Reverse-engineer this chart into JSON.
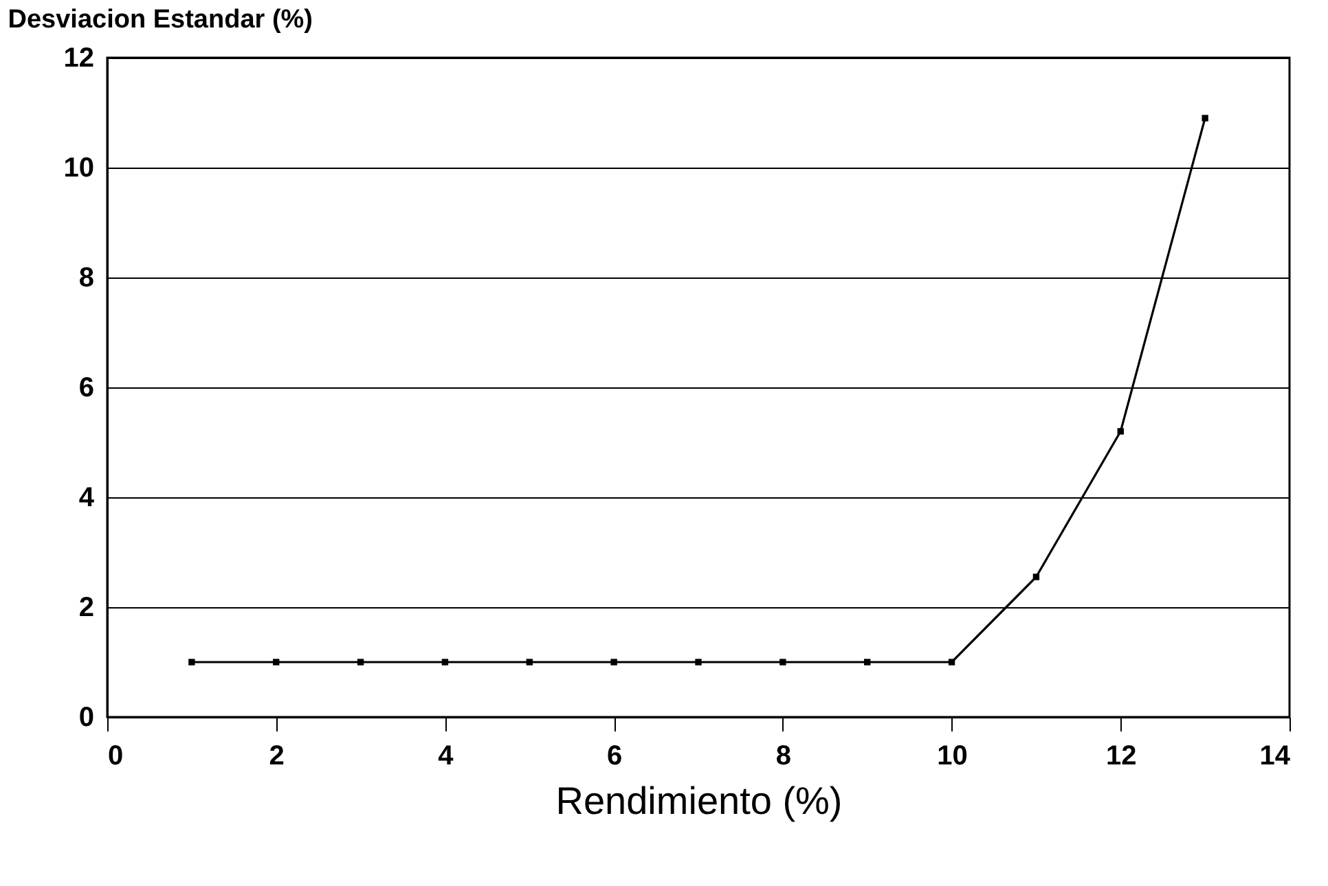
{
  "chart_data": {
    "type": "line",
    "xlabel": "Rendimiento (%)",
    "ylabel": "Desviacion Estandar (%)",
    "x": [
      1,
      2,
      3,
      4,
      5,
      6,
      7,
      8,
      9,
      10,
      11,
      12,
      13
    ],
    "series": [
      {
        "color": "#000000",
        "values": [
          1.0,
          1.0,
          1.0,
          1.0,
          1.0,
          1.0,
          1.0,
          1.0,
          1.0,
          1.0,
          2.55,
          5.2,
          10.9
        ]
      }
    ],
    "xlim": [
      0,
      14
    ],
    "xticks": [
      0,
      2,
      4,
      6,
      8,
      10,
      12,
      14
    ],
    "ylim": [
      0,
      12
    ],
    "yticks": [
      0,
      2,
      4,
      6,
      8,
      10,
      12
    ],
    "grid": "y",
    "marker": "square",
    "line_style": "solid",
    "legend": false
  }
}
